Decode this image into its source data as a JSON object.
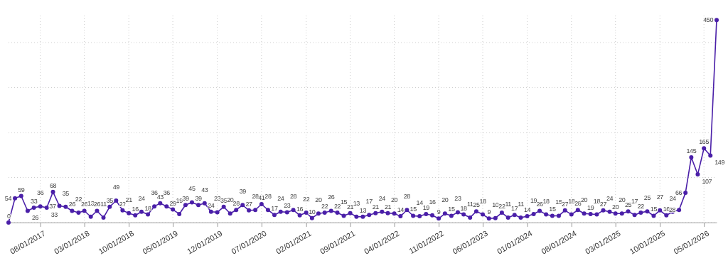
{
  "chart_data": {
    "type": "line",
    "x": [
      "2017-03",
      "2017-04",
      "2017-05",
      "2017-06",
      "2017-07",
      "2017-08",
      "2017-09",
      "2017-10",
      "2017-11",
      "2017-12",
      "2018-01",
      "2018-02",
      "2018-03",
      "2018-04",
      "2018-05",
      "2018-06",
      "2018-07",
      "2018-08",
      "2018-09",
      "2018-10",
      "2018-11",
      "2018-12",
      "2019-01",
      "2019-02",
      "2019-03",
      "2019-04",
      "2019-05",
      "2019-06",
      "2019-07",
      "2019-08",
      "2019-09",
      "2019-10",
      "2019-11",
      "2019-12",
      "2020-01",
      "2020-02",
      "2020-03",
      "2020-04",
      "2020-05",
      "2020-06",
      "2020-07",
      "2020-08",
      "2020-09",
      "2020-10",
      "2020-11",
      "2020-12",
      "2021-01",
      "2021-02",
      "2021-03",
      "2021-04",
      "2021-05",
      "2021-06",
      "2021-07",
      "2021-08",
      "2021-09",
      "2021-10",
      "2021-11",
      "2021-12",
      "2022-01",
      "2022-02",
      "2022-03",
      "2022-04",
      "2022-05",
      "2022-06",
      "2022-07",
      "2022-08",
      "2022-09",
      "2022-10",
      "2022-11",
      "2022-12",
      "2023-01",
      "2023-02",
      "2023-03",
      "2023-04",
      "2023-05",
      "2023-06",
      "2023-07",
      "2023-08",
      "2023-09",
      "2023-10",
      "2023-11",
      "2023-12",
      "2024-01",
      "2024-02",
      "2024-03",
      "2024-04",
      "2024-05",
      "2024-06",
      "2024-07",
      "2024-08",
      "2024-09",
      "2024-10",
      "2024-11",
      "2024-12",
      "2025-01",
      "2025-02",
      "2025-03",
      "2025-04",
      "2025-05",
      "2025-06",
      "2025-07",
      "2025-08",
      "2025-09",
      "2025-10",
      "2025-11",
      "2025-12",
      "2026-01",
      "2026-02",
      "2026-03",
      "2026-04",
      "2026-05",
      "2026-06",
      "2026-07"
    ],
    "series": [
      {
        "color": "#4a1fa8",
        "values": [
          0,
          54,
          59,
          26,
          33,
          36,
          33,
          68,
          37,
          35,
          26,
          22,
          26,
          13,
          26,
          11,
          35,
          49,
          27,
          21,
          16,
          24,
          18,
          36,
          43,
          36,
          29,
          19,
          39,
          45,
          39,
          43,
          24,
          23,
          35,
          20,
          28,
          39,
          27,
          28,
          41,
          28,
          17,
          24,
          23,
          28,
          16,
          22,
          10,
          20,
          22,
          26,
          22,
          15,
          21,
          13,
          13,
          17,
          21,
          24,
          21,
          20,
          14,
          28,
          15,
          14,
          19,
          16,
          9,
          20,
          15,
          23,
          18,
          11,
          25,
          18,
          9,
          10,
          22,
          11,
          17,
          11,
          14,
          19,
          26,
          18,
          15,
          15,
          27,
          18,
          28,
          20,
          19,
          18,
          27,
          24,
          20,
          20,
          25,
          17,
          22,
          25,
          15,
          27,
          16,
          24,
          28,
          66,
          145,
          107,
          165,
          149,
          450
        ]
      }
    ],
    "xlim": [
      "2017-03",
      "2026-07"
    ],
    "xticks": [
      {
        "value": "2017-08",
        "label": "08/01/2017"
      },
      {
        "value": "2018-03",
        "label": "03/01/2018"
      },
      {
        "value": "2018-10",
        "label": "10/01/2018"
      },
      {
        "value": "2019-05",
        "label": "05/01/2019"
      },
      {
        "value": "2019-12",
        "label": "12/01/2019"
      },
      {
        "value": "2020-07",
        "label": "07/01/2020"
      },
      {
        "value": "2021-02",
        "label": "02/01/2021"
      },
      {
        "value": "2021-09",
        "label": "09/01/2021"
      },
      {
        "value": "2022-04",
        "label": "04/01/2022"
      },
      {
        "value": "2022-11",
        "label": "11/01/2022"
      },
      {
        "value": "2023-06",
        "label": "06/01/2023"
      },
      {
        "value": "2024-01",
        "label": "01/01/2024"
      },
      {
        "value": "2024-08",
        "label": "08/01/2024"
      },
      {
        "value": "2025-03",
        "label": "03/01/2025"
      },
      {
        "value": "2025-10",
        "label": "10/01/2025"
      },
      {
        "value": "2026-05",
        "label": "05/01/2026"
      }
    ],
    "ylim": [
      0,
      460
    ],
    "yticks": [
      {
        "value": 0,
        "label": null
      },
      {
        "value": 100,
        "label": null
      },
      {
        "value": 200,
        "label": null
      },
      {
        "value": 300,
        "label": null
      },
      {
        "value": 400,
        "label": null
      }
    ],
    "tick_labels": "x",
    "grid": true,
    "marker": "circle",
    "line_style": "solid",
    "data_labels": true
  }
}
